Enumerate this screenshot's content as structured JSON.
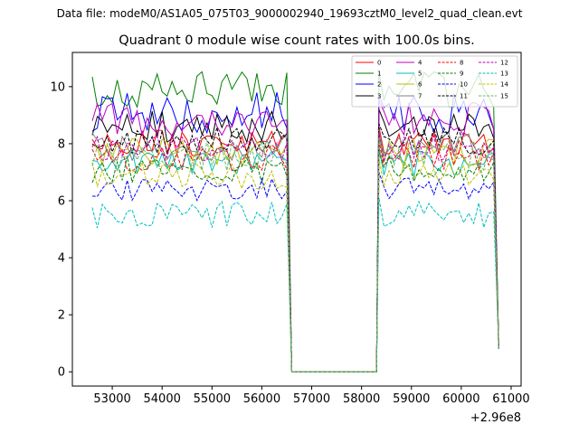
{
  "chart_data": {
    "type": "line",
    "suptitle": "Data file: modeM0/AS1A05_075T03_9000002940_19693cztM0_level2_quad_clean.evt",
    "title": "Quadrant 0 module wise count rates with 100.0s bins.",
    "xlabel": "",
    "ylabel": "",
    "x_offset_label": "+2.96e8",
    "xlim": [
      52200,
      61200
    ],
    "ylim": [
      -0.5,
      11.2
    ],
    "x_ticks": [
      53000,
      54000,
      55000,
      56000,
      57000,
      58000,
      59000,
      60000,
      61000
    ],
    "y_ticks": [
      0,
      2,
      4,
      6,
      8,
      10
    ],
    "legend_location": "upper right",
    "segments": [
      {
        "x_start": 52600,
        "x_end": 56500,
        "step": 100
      },
      {
        "x_start": 58350,
        "x_end": 60700,
        "step": 100
      }
    ],
    "gap": {
      "x_start": 56600,
      "x_end": 58300,
      "value": 0
    },
    "series": [
      {
        "name": "0",
        "color": "#ff0000",
        "dash": "solid",
        "mean": 8.0,
        "amp": 0.3,
        "seed": 1
      },
      {
        "name": "1",
        "color": "#008000",
        "dash": "solid",
        "mean": 9.9,
        "amp": 0.4,
        "seed": 2
      },
      {
        "name": "2",
        "color": "#0000ff",
        "dash": "solid",
        "mean": 9.1,
        "amp": 0.45,
        "seed": 3
      },
      {
        "name": "3",
        "color": "#000000",
        "dash": "solid",
        "mean": 8.6,
        "amp": 0.35,
        "seed": 4
      },
      {
        "name": "4",
        "color": "#bf00bf",
        "dash": "solid",
        "mean": 8.9,
        "amp": 0.4,
        "seed": 5
      },
      {
        "name": "5",
        "color": "#00bfbf",
        "dash": "solid",
        "mean": 7.3,
        "amp": 0.3,
        "seed": 6
      },
      {
        "name": "6",
        "color": "#bfbf00",
        "dash": "solid",
        "mean": 7.7,
        "amp": 0.3,
        "seed": 7
      },
      {
        "name": "7",
        "color": "#808080",
        "dash": "solid",
        "mean": 7.9,
        "amp": 0.3,
        "seed": 8
      },
      {
        "name": "8",
        "color": "#ff0000",
        "dash": "dashed",
        "mean": 7.5,
        "amp": 0.3,
        "seed": 9
      },
      {
        "name": "9",
        "color": "#008000",
        "dash": "dashed",
        "mean": 7.1,
        "amp": 0.3,
        "seed": 10
      },
      {
        "name": "10",
        "color": "#0000ff",
        "dash": "dashed",
        "mean": 6.4,
        "amp": 0.25,
        "seed": 11
      },
      {
        "name": "11",
        "color": "#000000",
        "dash": "dashed",
        "mean": 8.1,
        "amp": 0.3,
        "seed": 12
      },
      {
        "name": "12",
        "color": "#bf00bf",
        "dash": "dashed",
        "mean": 7.8,
        "amp": 0.3,
        "seed": 13
      },
      {
        "name": "13",
        "color": "#00bfbf",
        "dash": "dashed",
        "mean": 5.5,
        "amp": 0.3,
        "seed": 14
      },
      {
        "name": "14",
        "color": "#bfbf00",
        "dash": "dashed",
        "mean": 6.9,
        "amp": 0.3,
        "seed": 15
      },
      {
        "name": "15",
        "color": "#66bb66",
        "dash": "dashed",
        "mean": 7.6,
        "amp": 0.35,
        "seed": 16
      }
    ]
  }
}
